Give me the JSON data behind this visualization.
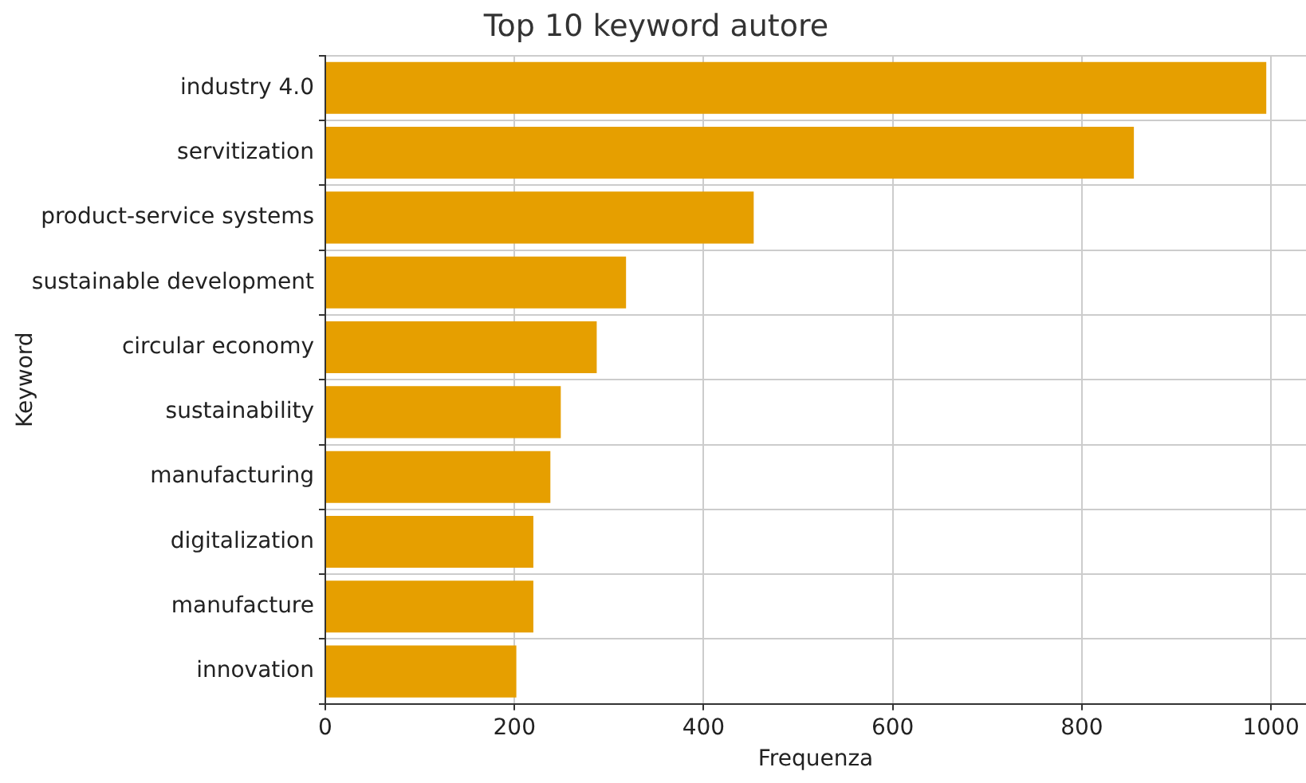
{
  "chart_data": {
    "type": "bar",
    "orientation": "horizontal",
    "title": "Top 10 keyword autore",
    "xlabel": "Frequenza",
    "ylabel": "Keyword",
    "categories": [
      "industry 4.0",
      "servitization",
      "product-service systems",
      "sustainable development",
      "circular economy",
      "sustainability",
      "manufacturing",
      "digitalization",
      "manufacture",
      "innovation"
    ],
    "values": [
      995,
      855,
      453,
      318,
      287,
      249,
      238,
      220,
      220,
      202
    ],
    "color": "#e69f00",
    "xlim": [
      0,
      1037
    ],
    "xticks": [
      0,
      200,
      400,
      600,
      800,
      1000
    ],
    "grid": true,
    "legend": false
  }
}
